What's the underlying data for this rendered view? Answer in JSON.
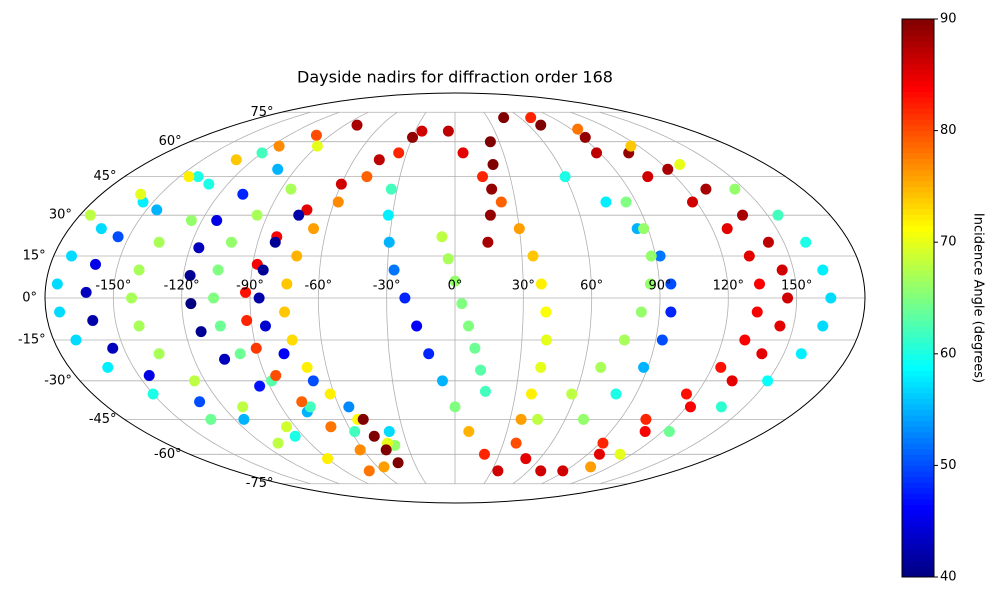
{
  "chart_data": {
    "type": "scatter",
    "projection": "mollweide",
    "title": "Dayside nadirs for diffraction order 168",
    "xlim": [
      -180,
      180
    ],
    "ylim": [
      -90,
      90
    ],
    "xticks": [
      {
        "value": -150,
        "label": "-150°"
      },
      {
        "value": -120,
        "label": "-120°"
      },
      {
        "value": -90,
        "label": "-90°"
      },
      {
        "value": -60,
        "label": "-60°"
      },
      {
        "value": -30,
        "label": "-30°"
      },
      {
        "value": 0,
        "label": "0°"
      },
      {
        "value": 30,
        "label": "30°"
      },
      {
        "value": 60,
        "label": "60°"
      },
      {
        "value": 90,
        "label": "90°"
      },
      {
        "value": 120,
        "label": "120°"
      },
      {
        "value": 150,
        "label": "150°"
      }
    ],
    "yticks": [
      {
        "value": -75,
        "label": "-75°"
      },
      {
        "value": -60,
        "label": "-60°"
      },
      {
        "value": -45,
        "label": "-45°"
      },
      {
        "value": -30,
        "label": "-30°"
      },
      {
        "value": -15,
        "label": "-15°"
      },
      {
        "value": 0,
        "label": "0°"
      },
      {
        "value": 15,
        "label": "15°"
      },
      {
        "value": 30,
        "label": "30°"
      },
      {
        "value": 45,
        "label": "45°"
      },
      {
        "value": 60,
        "label": "60°"
      },
      {
        "value": 75,
        "label": "75°"
      }
    ],
    "grid": true,
    "colormap": "jet",
    "colorbar": {
      "label": "Incidence Angle (degrees)",
      "clim": [
        40,
        90
      ],
      "ticks": [
        40,
        50,
        60,
        70,
        80,
        90
      ]
    },
    "series": [
      {
        "x": [
          -120,
          -140,
          -155,
          -165,
          -172,
          -175,
          -174,
          -170,
          -162,
          -150,
          -133,
          -110,
          -90,
          -70
        ],
        "y": [
          55,
          45,
          35,
          25,
          15,
          5,
          -5,
          -15,
          -25,
          -35,
          -45,
          -55,
          -62,
          -68
        ],
        "c": [
          62,
          60,
          58,
          57,
          57,
          57,
          57,
          57,
          58,
          60,
          64,
          68,
          72,
          78
        ]
      },
      {
        "x": [
          -175,
          -160,
          -145,
          -130,
          -115,
          -100
        ],
        "y": [
          30,
          38,
          45,
          52,
          58,
          63
        ],
        "c": [
          68,
          70,
          72,
          74,
          77,
          80
        ]
      },
      {
        "x": [
          -130,
          -145,
          -155,
          -160,
          -162,
          -160,
          -155,
          -145,
          -130,
          -115,
          -95
        ],
        "y": [
          42,
          32,
          22,
          12,
          2,
          -8,
          -18,
          -28,
          -38,
          -45,
          -52
        ],
        "c": [
          60,
          55,
          50,
          45,
          43,
          42,
          43,
          45,
          50,
          55,
          60
        ]
      },
      {
        "x": [
          -125,
          -135,
          -140,
          -142,
          -140,
          -135,
          -125,
          -110,
          -95
        ],
        "y": [
          28,
          20,
          10,
          0,
          -10,
          -20,
          -30,
          -40,
          -48
        ],
        "c": [
          66,
          67,
          67,
          67,
          67,
          67,
          68,
          68,
          69
        ]
      },
      {
        "x": [
          -80,
          -90,
          -100,
          -108,
          -113,
          -116,
          -117,
          -116,
          -113,
          -106,
          -95,
          -78,
          -58,
          -38
        ],
        "y": [
          68,
          58,
          48,
          38,
          28,
          18,
          8,
          -2,
          -12,
          -22,
          -32,
          -42,
          -50,
          -56
        ],
        "c": [
          88,
          70,
          55,
          48,
          45,
          43,
          41,
          40,
          41,
          43,
          47,
          55,
          62,
          66
        ]
      },
      {
        "x": [
          -85,
          -95,
          -102,
          -105,
          -106,
          -104,
          -98,
          -88,
          -75
        ],
        "y": [
          40,
          30,
          20,
          10,
          0,
          -10,
          -20,
          -30,
          -40
        ],
        "c": [
          67,
          67,
          66,
          65,
          65,
          64,
          64,
          63,
          62
        ]
      },
      {
        "x": [
          -30,
          -45,
          -60,
          -72,
          -82,
          -88,
          -92,
          -92,
          -90,
          -85,
          -78,
          -70,
          -62,
          -55
        ],
        "y": [
          62,
          52,
          42,
          32,
          22,
          12,
          2,
          -8,
          -18,
          -28,
          -38,
          -48,
          -58,
          -66
        ],
        "c": [
          89,
          87,
          86,
          85,
          84,
          84,
          83,
          82,
          81,
          80,
          79,
          78,
          77,
          76
        ]
      },
      {
        "x": [
          -75,
          -82,
          -85,
          -86,
          -84,
          -78,
          -68,
          -55,
          -38
        ],
        "y": [
          30,
          20,
          10,
          0,
          -10,
          -20,
          -30,
          -40,
          -50
        ],
        "c": [
          42,
          41,
          41,
          42,
          44,
          46,
          50,
          53,
          57
        ]
      },
      {
        "x": [
          -25,
          -35,
          -48,
          -58,
          -66,
          -71,
          -74,
          -75,
          -73,
          -69,
          -62,
          -53,
          -42
        ],
        "y": [
          65,
          55,
          45,
          35,
          25,
          15,
          5,
          -5,
          -15,
          -25,
          -35,
          -45,
          -55
        ],
        "c": [
          86,
          82,
          79,
          77,
          76,
          75,
          74,
          74,
          73,
          72,
          72,
          71,
          70
        ]
      },
      {
        "x": [
          -33,
          -32,
          -30,
          -27,
          -22,
          -17,
          -12,
          -6,
          0,
          8,
          20,
          35
        ],
        "y": [
          40,
          30,
          20,
          10,
          0,
          -10,
          -20,
          -30,
          -40,
          -50,
          -60,
          -68
        ],
        "c": [
          62,
          58,
          55,
          52,
          48,
          46,
          48,
          55,
          65,
          75,
          82,
          86
        ]
      },
      {
        "x": [
          -5,
          5,
          15,
          23,
          30,
          35,
          38,
          40,
          41,
          40,
          38,
          36,
          38,
          50,
          70
        ],
        "y": [
          65,
          55,
          45,
          35,
          25,
          15,
          5,
          -5,
          -15,
          -25,
          -35,
          -45,
          -55,
          -62,
          -68
        ],
        "c": [
          87,
          85,
          82,
          79,
          76,
          74,
          72,
          71,
          70,
          70,
          72,
          76,
          80,
          85,
          86
        ]
      },
      {
        "x": [
          24,
          22,
          19,
          17,
          15
        ],
        "y": [
          60,
          50,
          40,
          30,
          20
        ],
        "c": [
          90,
          90,
          89,
          89,
          88
        ]
      },
      {
        "x": [
          -6,
          -3,
          0,
          3,
          6,
          9,
          12,
          15
        ],
        "y": [
          22,
          14,
          6,
          -2,
          -10,
          -18,
          -26,
          -34
        ],
        "c": [
          68,
          67,
          66,
          65,
          65,
          64,
          63,
          62
        ]
      },
      {
        "x": [
          45,
          70,
          92,
          108,
          120,
          130,
          138,
          143,
          145,
          146,
          144,
          140,
          133,
          122,
          110,
          98,
          88
        ],
        "y": [
          72,
          68,
          62,
          55,
          48,
          40,
          30,
          20,
          10,
          0,
          -10,
          -20,
          -30,
          -40,
          -50,
          -60,
          -68
        ],
        "c": [
          90,
          90,
          89,
          89,
          88,
          88,
          88,
          87,
          86,
          86,
          85,
          85,
          85,
          84,
          84,
          85,
          86
        ]
      },
      {
        "x": [
          70,
          95,
          115,
          130,
          145,
          155,
          160,
          163,
          165,
          163,
          158,
          150,
          138,
          124,
          112,
          105
        ],
        "y": [
          72,
          66,
          58,
          50,
          40,
          30,
          20,
          10,
          0,
          -10,
          -20,
          -30,
          -40,
          -50,
          -60,
          -66
        ],
        "c": [
          82,
          78,
          74,
          70,
          66,
          62,
          60,
          58,
          57,
          57,
          58,
          59,
          61,
          64,
          70,
          76
        ]
      },
      {
        "x": [
          60,
          75,
          85,
          92,
          95,
          95,
          93,
          88,
          80,
          70
        ],
        "y": [
          45,
          35,
          25,
          15,
          5,
          -5,
          -15,
          -25,
          -35,
          -45
        ],
        "c": [
          60,
          58,
          55,
          52,
          50,
          48,
          50,
          55,
          60,
          66
        ]
      },
      {
        "x": [
          85,
          88,
          88,
          86,
          82,
          76,
          68,
          58,
          45
        ],
        "y": [
          35,
          25,
          15,
          5,
          -5,
          -15,
          -25,
          -35,
          -45
        ],
        "c": [
          65,
          66,
          66,
          66,
          66,
          67,
          67,
          68,
          68
        ]
      },
      {
        "x": [
          88,
          105,
          118,
          127,
          132,
          134,
          133,
          130,
          124,
          115,
          104,
          92
        ],
        "y": [
          55,
          45,
          35,
          25,
          15,
          5,
          -5,
          -15,
          -25,
          -35,
          -45,
          -55
        ],
        "c": [
          87,
          86,
          86,
          85,
          85,
          84,
          84,
          84,
          83,
          83,
          82,
          82
        ]
      },
      {
        "x": [
          -50,
          -48,
          -45,
          -42
        ],
        "y": [
          -45,
          -52,
          -58,
          -64
        ],
        "c": [
          90,
          90,
          90,
          90
        ]
      }
    ]
  }
}
